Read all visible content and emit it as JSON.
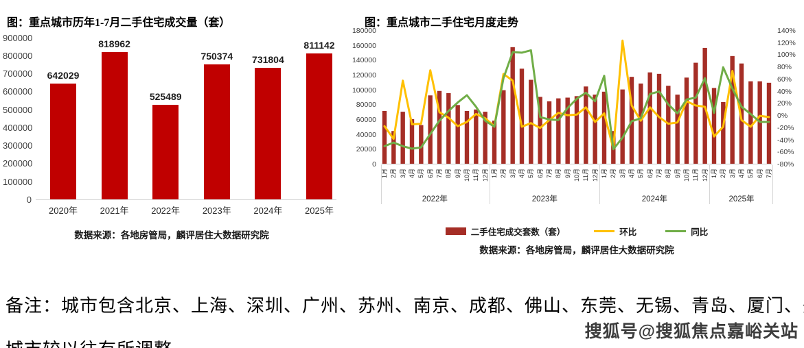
{
  "watermark": "搜狐号@搜狐焦点嘉峪关站",
  "note": {
    "line1": "备注：城市包含北京、上海、深圳、广州、苏州、南京、成都、佛山、东莞、无锡、青岛、厦门、郑州，",
    "line2": "城市较以往有所调整。"
  },
  "chart_data": [
    {
      "type": "bar",
      "title": "图：重点城市历年1-7月二手住宅成交量（套）",
      "categories": [
        "2020年",
        "2021年",
        "2022年",
        "2023年",
        "2024年",
        "2025年"
      ],
      "values": [
        642029,
        818962,
        525489,
        750374,
        731804,
        811142
      ],
      "bar_color": "#c00000",
      "xlabel": "",
      "ylabel": "",
      "ylim": [
        0,
        900000
      ],
      "ytick_step": 100000,
      "grid": false,
      "data_labels": true,
      "legend_position": "none",
      "source": "数据来源：各地房管局，麟评居住大数据研究院"
    },
    {
      "type": "bar+line",
      "title": "图：重点城市二手住宅月度走势",
      "year_groups": [
        {
          "label": "2022年",
          "months": [
            "1月",
            "2月",
            "3月",
            "4月",
            "5月",
            "6月",
            "7月",
            "8月",
            "9月",
            "10月",
            "11月",
            "12月"
          ]
        },
        {
          "label": "2023年",
          "months": [
            "1月",
            "2月",
            "3月",
            "4月",
            "5月",
            "6月",
            "7月",
            "8月",
            "9月",
            "10月",
            "11月",
            "12月"
          ]
        },
        {
          "label": "2024年",
          "months": [
            "1月",
            "2月",
            "3月",
            "4月",
            "5月",
            "6月",
            "7月",
            "8月",
            "9月",
            "10月",
            "11月",
            "12月"
          ]
        },
        {
          "label": "2025年",
          "months": [
            "1月",
            "2月",
            "3月",
            "4月",
            "5月",
            "6月",
            "7月"
          ]
        }
      ],
      "series": [
        {
          "name": "二手住宅成交套数（套）",
          "type": "bar",
          "axis": "left",
          "color": "#a52e26",
          "values": [
            72000,
            45000,
            71000,
            61000,
            53000,
            93000,
            99000,
            96000,
            80000,
            72000,
            74000,
            71000,
            59000,
            100000,
            158000,
            129000,
            114000,
            91000,
            85000,
            89000,
            90000,
            92000,
            105000,
            94000,
            98000,
            45000,
            101000,
            118000,
            109000,
            124000,
            122000,
            106000,
            94000,
            117000,
            137000,
            157000,
            103000,
            84000,
            146000,
            136000,
            112000,
            112000,
            110000
          ]
        },
        {
          "name": "环比",
          "type": "line",
          "axis": "right",
          "color": "#ffc000",
          "values": [
            -17,
            -38,
            58,
            -14,
            -13,
            75,
            6,
            -3,
            -17,
            -10,
            3,
            -4,
            -17,
            69,
            58,
            -18,
            -12,
            -20,
            -7,
            5,
            1,
            2,
            14,
            -10,
            4,
            -54,
            124,
            17,
            -8,
            14,
            -2,
            -13,
            -11,
            24,
            17,
            15,
            -34,
            -18,
            74,
            -7,
            -18,
            0,
            -2
          ]
        },
        {
          "name": "同比",
          "type": "line",
          "axis": "right",
          "color": "#70ad47",
          "values": [
            -50,
            -44,
            -50,
            -54,
            -52,
            -30,
            -8,
            8,
            22,
            34,
            15,
            -8,
            -18,
            62,
            105,
            104,
            108,
            -2,
            -6,
            -7,
            13,
            28,
            38,
            24,
            66,
            -55,
            -36,
            -9,
            -4,
            36,
            40,
            19,
            4,
            27,
            30,
            62,
            5,
            80,
            45,
            15,
            3,
            -10,
            -10
          ]
        }
      ],
      "left_axis": {
        "min": 0,
        "max": 180000,
        "step": 20000
      },
      "right_axis": {
        "min": -80,
        "max": 140,
        "step": 20,
        "suffix": "%"
      },
      "grid": false,
      "legend_position": "bottom",
      "source": "数据来源：各地房管局，麟评居住大数据研究院"
    }
  ]
}
